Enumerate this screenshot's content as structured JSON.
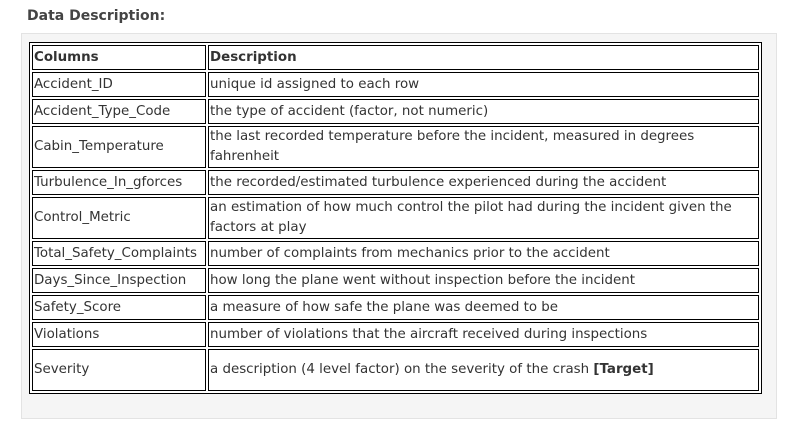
{
  "heading": "Data Description:",
  "table": {
    "headers": [
      "Columns",
      "Description"
    ],
    "rows": [
      {
        "column": "Accident_ID",
        "description": "unique id assigned to each row"
      },
      {
        "column": "Accident_Type_Code",
        "description": "the type of accident (factor, not numeric)"
      },
      {
        "column": "Cabin_Temperature",
        "description": "the last recorded temperature before the incident, measured in degrees fahrenheit"
      },
      {
        "column": "Turbulence_In_gforces",
        "description": "the recorded/estimated turbulence experienced during the accident"
      },
      {
        "column": "Control_Metric",
        "description": "an estimation of how much control the pilot had during the incident given the factors at play"
      },
      {
        "column": "Total_Safety_Complaints",
        "description": "number of complaints from mechanics prior to the accident"
      },
      {
        "column": "Days_Since_Inspection",
        "description": "how long the plane went without inspection before the incident"
      },
      {
        "column": "Safety_Score",
        "description": "a measure of how safe the plane was deemed to be"
      },
      {
        "column": "Violations",
        "description": "number of violations that the aircraft received during inspections"
      },
      {
        "column": "Severity",
        "description": "a description (4 level factor) on the severity of the crash ",
        "tag": "[Target]"
      }
    ]
  }
}
